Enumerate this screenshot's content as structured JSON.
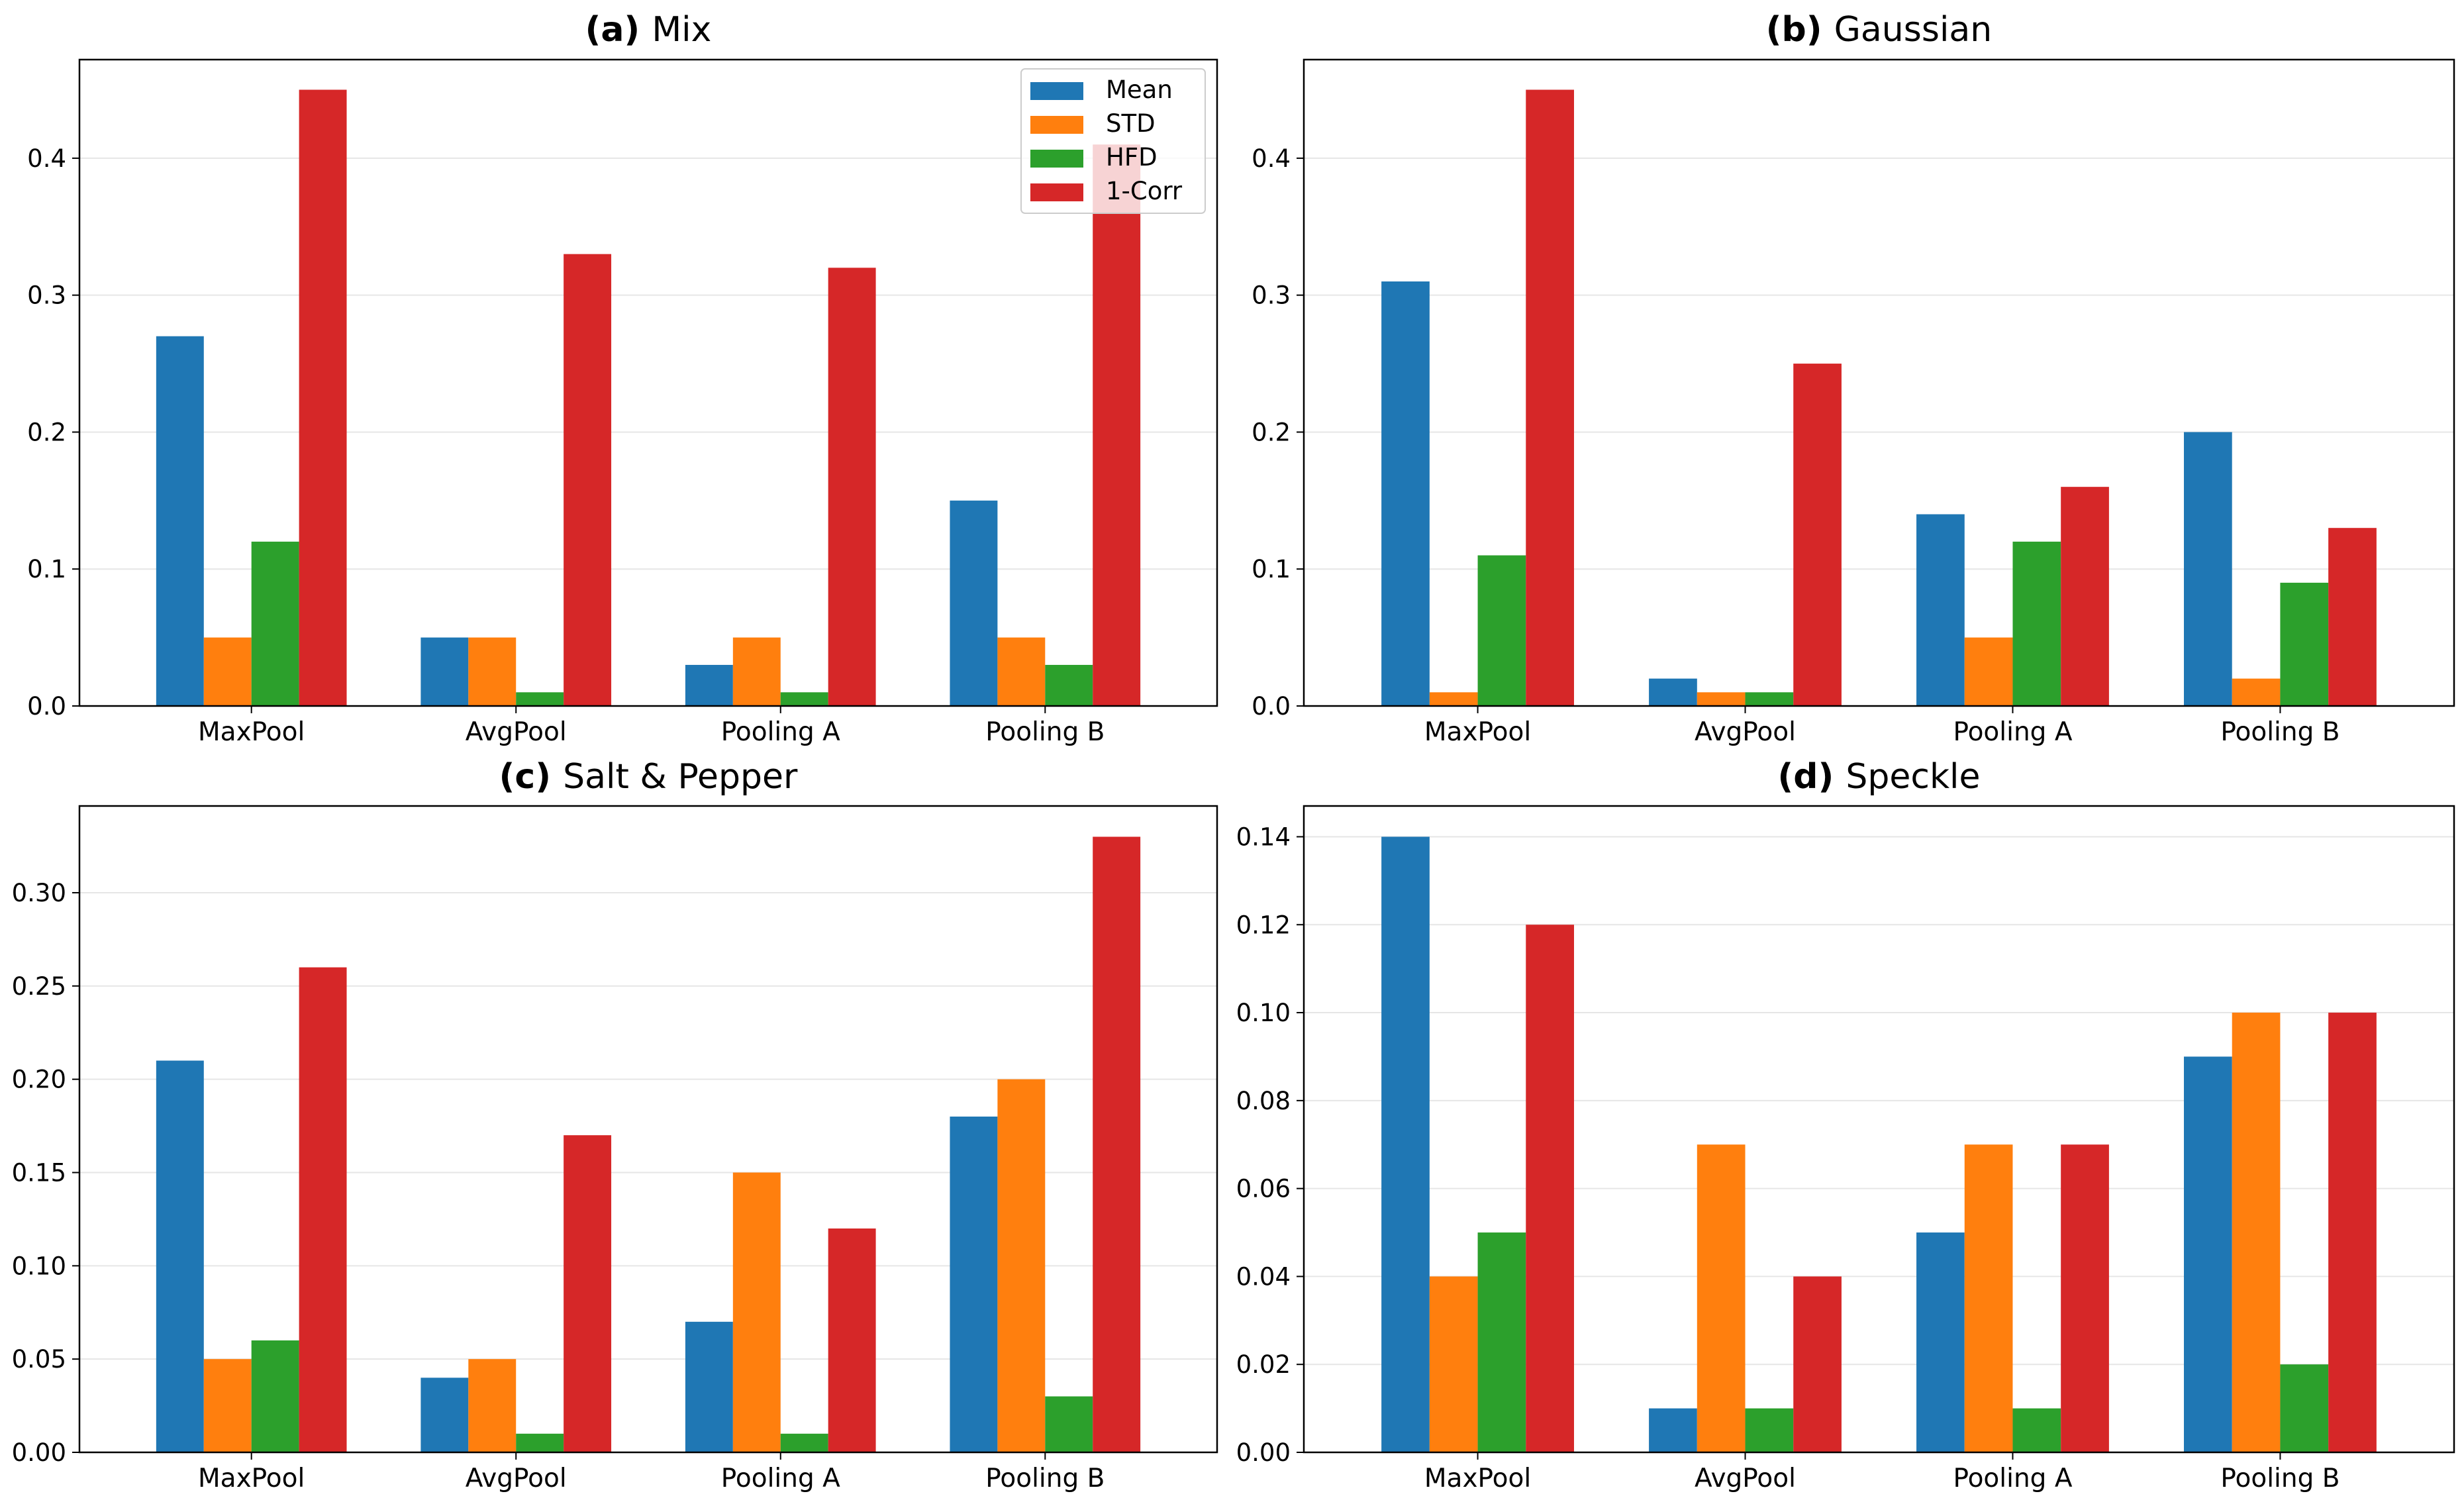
{
  "colors": {
    "Mean": "#1f77b4",
    "STD": "#ff7f0e",
    "HFD": "#2ca02c",
    "1-Corr": "#d62728",
    "grid": "#e6e6e6",
    "axis": "#000000"
  },
  "chart_data": [
    {
      "type": "bar",
      "id": "a",
      "label": "(a)",
      "title": "Mix",
      "categories": [
        "MaxPool",
        "AvgPool",
        "Pooling A",
        "Pooling B"
      ],
      "series": [
        {
          "name": "Mean",
          "values": [
            0.27,
            0.05,
            0.03,
            0.15
          ]
        },
        {
          "name": "STD",
          "values": [
            0.05,
            0.05,
            0.05,
            0.05
          ]
        },
        {
          "name": "HFD",
          "values": [
            0.12,
            0.01,
            0.01,
            0.03
          ]
        },
        {
          "name": "1-Corr",
          "values": [
            0.45,
            0.33,
            0.32,
            0.41
          ]
        }
      ],
      "ylim": [
        0,
        0.472
      ],
      "yticks": [
        "0.0",
        "0.1",
        "0.2",
        "0.3",
        "0.4"
      ],
      "legend": "top-right",
      "grid": true
    },
    {
      "type": "bar",
      "id": "b",
      "label": "(b)",
      "title": "Gaussian",
      "categories": [
        "MaxPool",
        "AvgPool",
        "Pooling A",
        "Pooling B"
      ],
      "series": [
        {
          "name": "Mean",
          "values": [
            0.31,
            0.02,
            0.14,
            0.2
          ]
        },
        {
          "name": "STD",
          "values": [
            0.01,
            0.01,
            0.05,
            0.02
          ]
        },
        {
          "name": "HFD",
          "values": [
            0.11,
            0.01,
            0.12,
            0.09
          ]
        },
        {
          "name": "1-Corr",
          "values": [
            0.45,
            0.25,
            0.16,
            0.13
          ]
        }
      ],
      "ylim": [
        0,
        0.472
      ],
      "yticks": [
        "0.0",
        "0.1",
        "0.2",
        "0.3",
        "0.4"
      ],
      "legend": "none",
      "grid": true
    },
    {
      "type": "bar",
      "id": "c",
      "label": "(c)",
      "title": "Salt & Pepper",
      "categories": [
        "MaxPool",
        "AvgPool",
        "Pooling A",
        "Pooling B"
      ],
      "series": [
        {
          "name": "Mean",
          "values": [
            0.21,
            0.04,
            0.07,
            0.18
          ]
        },
        {
          "name": "STD",
          "values": [
            0.05,
            0.05,
            0.15,
            0.2
          ]
        },
        {
          "name": "HFD",
          "values": [
            0.06,
            0.01,
            0.01,
            0.03
          ]
        },
        {
          "name": "1-Corr",
          "values": [
            0.26,
            0.17,
            0.12,
            0.33
          ]
        }
      ],
      "ylim": [
        0,
        0.3465
      ],
      "yticks": [
        "0.00",
        "0.05",
        "0.10",
        "0.15",
        "0.20",
        "0.25",
        "0.30"
      ],
      "legend": "none",
      "grid": true
    },
    {
      "type": "bar",
      "id": "d",
      "label": "(d)",
      "title": "Speckle",
      "categories": [
        "MaxPool",
        "AvgPool",
        "Pooling A",
        "Pooling B"
      ],
      "series": [
        {
          "name": "Mean",
          "values": [
            0.14,
            0.01,
            0.05,
            0.09
          ]
        },
        {
          "name": "STD",
          "values": [
            0.04,
            0.07,
            0.07,
            0.1
          ]
        },
        {
          "name": "HFD",
          "values": [
            0.05,
            0.01,
            0.01,
            0.02
          ]
        },
        {
          "name": "1-Corr",
          "values": [
            0.12,
            0.04,
            0.07,
            0.1
          ]
        }
      ],
      "ylim": [
        0,
        0.147
      ],
      "yticks": [
        "0.00",
        "0.02",
        "0.04",
        "0.06",
        "0.08",
        "0.10",
        "0.12",
        "0.14"
      ],
      "legend": "none",
      "grid": true
    }
  ]
}
